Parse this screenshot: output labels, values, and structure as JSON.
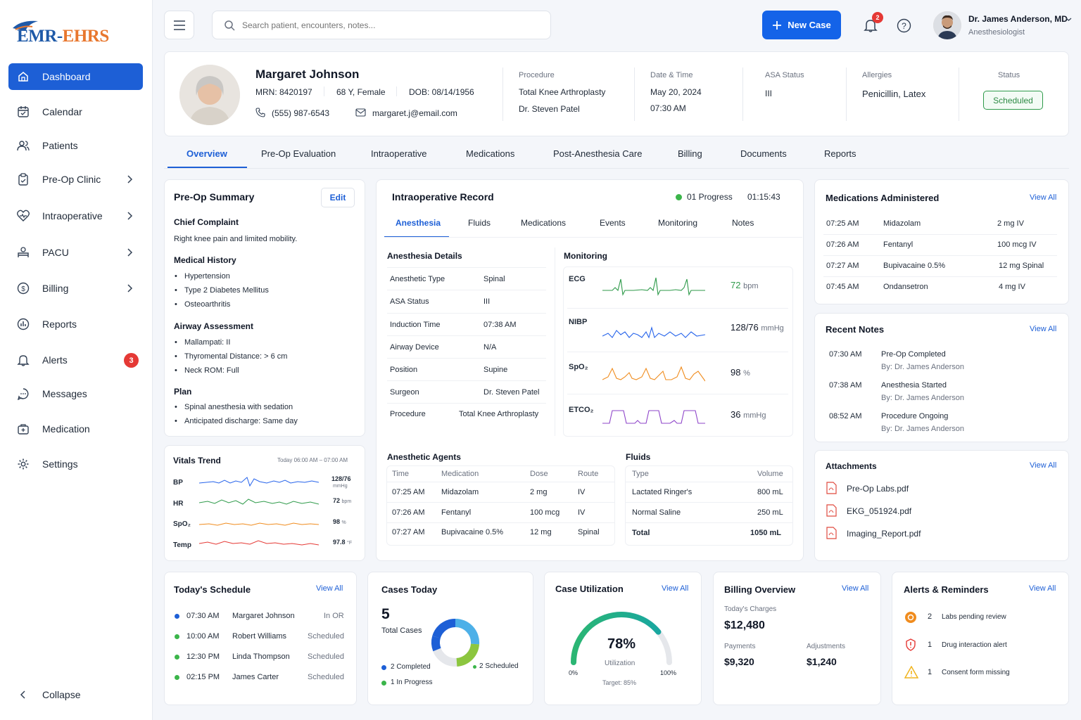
{
  "app": {
    "logo": "EMR-EHRS"
  },
  "sidebar": {
    "items": [
      {
        "label": "Dashboard"
      },
      {
        "label": "Calendar"
      },
      {
        "label": "Patients"
      },
      {
        "label": "Pre-Op Clinic"
      },
      {
        "label": "Intraoperative"
      },
      {
        "label": "PACU"
      },
      {
        "label": "Billing"
      },
      {
        "label": "Reports"
      },
      {
        "label": "Alerts",
        "badge": "3"
      },
      {
        "label": "Messages"
      },
      {
        "label": "Medication"
      },
      {
        "label": "Settings"
      }
    ],
    "collapse": "Collapse"
  },
  "topbar": {
    "search_placeholder": "Search patient, encounters, notes...",
    "new_case": "New Case",
    "notif_count": "2",
    "user_name": "Dr. James Anderson, MD",
    "user_role": "Anesthesiologist"
  },
  "patient": {
    "name": "Margaret Johnson",
    "mrn": "MRN: 8420197",
    "age_sex": "68 Y, Female",
    "dob": "DOB: 08/14/1956",
    "phone": "(555) 987-6543",
    "email": "margaret.j@email.com",
    "procedure_label": "Procedure",
    "procedure": "Total Knee Arthroplasty",
    "surgeon": "Dr. Steven Patel",
    "datetime_label": "Date & Time",
    "date": "May 20, 2024",
    "time": "07:30 AM",
    "asa_label": "ASA Status",
    "asa": "III",
    "allergies_label": "Allergies",
    "allergies": "Penicillin, Latex",
    "status_label": "Status",
    "status": "Scheduled"
  },
  "tabs": [
    "Overview",
    "Pre-Op Evaluation",
    "Intraoperative",
    "Medications",
    "Post-Anesthesia Care",
    "Billing",
    "Documents",
    "Reports"
  ],
  "preop": {
    "title": "Pre-Op Summary",
    "edit": "Edit",
    "cc_title": "Chief Complaint",
    "cc": "Right knee pain and limited mobility.",
    "mh_title": "Medical History",
    "mh": [
      "Hypertension",
      "Type 2 Diabetes Mellitus",
      "Osteoarthritis"
    ],
    "airway_title": "Airway Assessment",
    "airway": [
      "Mallampati: II",
      "Thyromental Distance: > 6 cm",
      "Neck ROM: Full"
    ],
    "plan_title": "Plan",
    "plan": [
      "Spinal anesthesia with sedation",
      "Anticipated discharge: Same day"
    ]
  },
  "vitals": {
    "title": "Vitals Trend",
    "range": "Today 06:00 AM – 07:00 AM",
    "rows": [
      {
        "label": "BP",
        "value": "128/76",
        "unit": "mmHg",
        "color": "#2563eb"
      },
      {
        "label": "HR",
        "value": "72",
        "unit": "bpm",
        "color": "#2e9a4a"
      },
      {
        "label": "SpO₂",
        "value": "98",
        "unit": "%",
        "color": "#f08c1e"
      },
      {
        "label": "Temp",
        "value": "97.8",
        "unit": "°F",
        "color": "#e53935"
      }
    ]
  },
  "intraop": {
    "title": "Intraoperative Record",
    "progress": "01 Progress",
    "timer": "01:15:43",
    "subtabs": [
      "Anesthesia",
      "Fluids",
      "Medications",
      "Events",
      "Monitoring",
      "Notes"
    ],
    "details_title": "Anesthesia Details",
    "details": [
      {
        "k": "Anesthetic Type",
        "v": "Spinal"
      },
      {
        "k": "ASA Status",
        "v": "III"
      },
      {
        "k": "Induction Time",
        "v": "07:38 AM"
      },
      {
        "k": "Airway Device",
        "v": "N/A"
      },
      {
        "k": "Position",
        "v": "Supine"
      },
      {
        "k": "Surgeon",
        "v": "Dr. Steven Patel"
      },
      {
        "k": "Procedure",
        "v": "Total Knee Arthroplasty"
      }
    ],
    "monitoring_title": "Monitoring",
    "monitors": [
      {
        "label": "ECG",
        "value": "72",
        "unit": "bpm",
        "color": "#2e9a4a"
      },
      {
        "label": "NIBP",
        "value": "128/76",
        "unit": "mmHg",
        "color": "#2563eb"
      },
      {
        "label": "SpO₂",
        "value": "98",
        "unit": "%",
        "color": "#f08c1e"
      },
      {
        "label": "ETCO₂",
        "value": "36",
        "unit": "mmHg",
        "color": "#8e44c9"
      }
    ],
    "agents_title": "Anesthetic Agents",
    "agents_headers": [
      "Time",
      "Medication",
      "Dose",
      "Route"
    ],
    "agents": [
      [
        "07:25 AM",
        "Midazolam",
        "2 mg",
        "IV"
      ],
      [
        "07:26 AM",
        "Fentanyl",
        "100 mcg",
        "IV"
      ],
      [
        "07:27 AM",
        "Bupivacaine 0.5%",
        "12 mg",
        "Spinal"
      ]
    ],
    "fluids_title": "Fluids",
    "fluids_headers": [
      "Type",
      "Volume"
    ],
    "fluids": [
      [
        "Lactated Ringer's",
        "800 mL"
      ],
      [
        "Normal Saline",
        "250 mL"
      ]
    ],
    "fluids_total": [
      "Total",
      "1050 mL"
    ]
  },
  "meds": {
    "title": "Medications Administered",
    "view_all": "View All",
    "rows": [
      [
        "07:25 AM",
        "Midazolam",
        "2 mg  IV"
      ],
      [
        "07:26 AM",
        "Fentanyl",
        "100 mcg  IV"
      ],
      [
        "07:27 AM",
        "Bupivacaine 0.5%",
        "12 mg  Spinal"
      ],
      [
        "07:45 AM",
        "Ondansetron",
        "4 mg  IV"
      ]
    ]
  },
  "notes": {
    "title": "Recent Notes",
    "view_all": "View All",
    "rows": [
      {
        "time": "07:30 AM",
        "title": "Pre-Op Completed",
        "by": "By: Dr. James Anderson"
      },
      {
        "time": "07:38 AM",
        "title": "Anesthesia Started",
        "by": "By: Dr. James Anderson"
      },
      {
        "time": "08:52 AM",
        "title": "Procedure Ongoing",
        "by": "By: Dr. James Anderson"
      }
    ]
  },
  "attachments": {
    "title": "Attachments",
    "view_all": "View All",
    "files": [
      "Pre-Op Labs.pdf",
      "EKG_051924.pdf",
      "Imaging_Report.pdf"
    ]
  },
  "schedule": {
    "title": "Today's Schedule",
    "view_all": "View All",
    "rows": [
      {
        "time": "07:30 AM",
        "name": "Margaret Johnson",
        "status": "In OR",
        "color": "#1d5fd6"
      },
      {
        "time": "10:00 AM",
        "name": "Robert Williams",
        "status": "Scheduled",
        "color": "#3bb54a"
      },
      {
        "time": "12:30 PM",
        "name": "Linda Thompson",
        "status": "Scheduled",
        "color": "#3bb54a"
      },
      {
        "time": "02:15 PM",
        "name": "James Carter",
        "status": "Scheduled",
        "color": "#3bb54a"
      }
    ]
  },
  "cases": {
    "title": "Cases Today",
    "count": "5",
    "count_label": "Total Cases",
    "legend": [
      {
        "label": "2 Completed",
        "color": "#1d5fd6"
      },
      {
        "label": "1 In Progress",
        "color": "#3bb54a"
      },
      {
        "label": "2 Scheduled",
        "color": "#3bb54a"
      }
    ]
  },
  "utilization": {
    "title": "Case Utilization",
    "view_all": "View All",
    "value": "78%",
    "fraction": 0.78,
    "label": "Utilization",
    "min": "0%",
    "max": "100%",
    "target": "Target: 85%"
  },
  "billing": {
    "title": "Billing Overview",
    "view_all": "View All",
    "charges_label": "Today's Charges",
    "charges": "$12,480",
    "payments_label": "Payments",
    "payments": "$9,320",
    "adjustments_label": "Adjustments",
    "adjustments": "$1,240"
  },
  "alerts": {
    "title": "Alerts & Reminders",
    "view_all": "View All",
    "rows": [
      {
        "count": "2",
        "text": "Labs pending review",
        "color": "#f08c1e"
      },
      {
        "count": "1",
        "text": "Drug interaction alert",
        "color": "#e53935"
      },
      {
        "count": "1",
        "text": "Consent form missing",
        "color": "#f0b41e"
      }
    ]
  }
}
